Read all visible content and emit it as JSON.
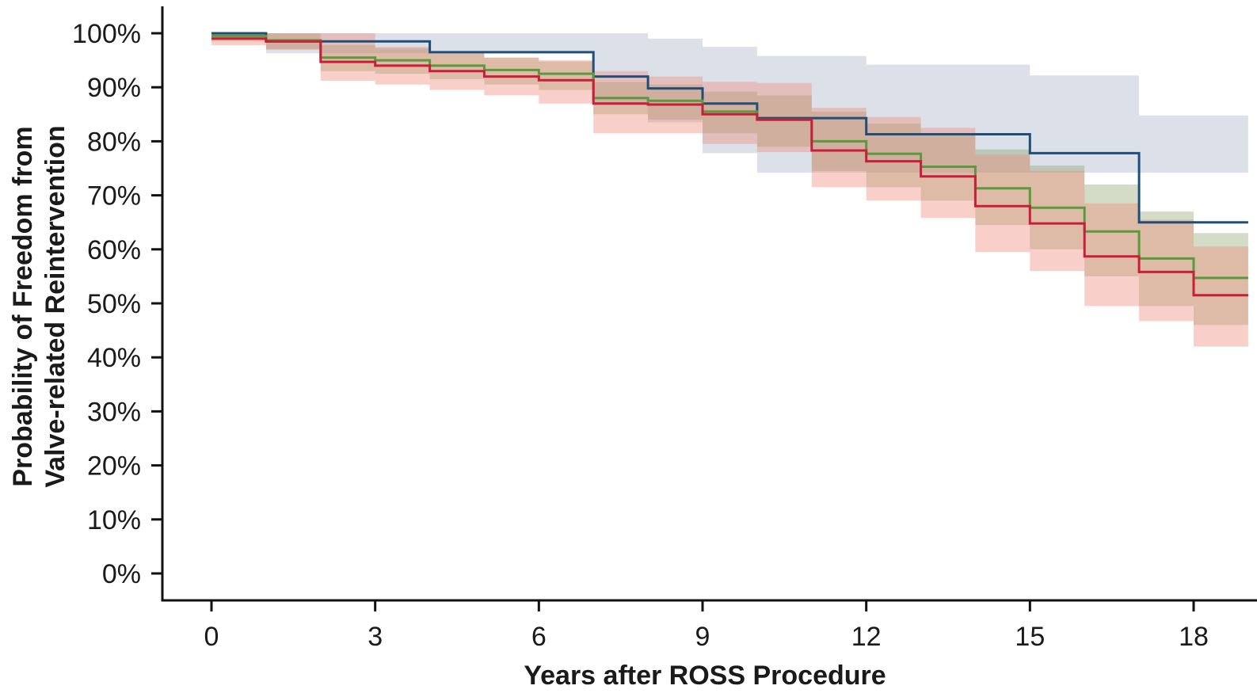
{
  "chart_data": {
    "type": "line",
    "step": true,
    "title": "",
    "xlabel": "Years after ROSS Procedure",
    "ylabel": [
      "Probability of Freedom from",
      "Valve-related Reintervention"
    ],
    "xlim": [
      -0.9,
      19
    ],
    "ylim": [
      -0.05,
      1.05
    ],
    "xticks": [
      0,
      3,
      6,
      9,
      12,
      15,
      18
    ],
    "xtick_labels": [
      "0",
      "3",
      "6",
      "9",
      "12",
      "15",
      "18"
    ],
    "yticks": [
      0,
      0.1,
      0.2,
      0.3,
      0.4,
      0.5,
      0.6,
      0.7,
      0.8,
      0.9,
      1.0
    ],
    "ytick_labels": [
      "0%",
      "10%",
      "20%",
      "30%",
      "40%",
      "50%",
      "60%",
      "70%",
      "80%",
      "90%",
      "100%"
    ],
    "grid": false,
    "legend": "none",
    "series": [
      {
        "color": "#1f4e79",
        "band_color": "#9aa8bf",
        "band_opacity": 0.35,
        "x": [
          0,
          1,
          4,
          7,
          8,
          9,
          10,
          12,
          15,
          17,
          18,
          19
        ],
        "y": [
          1.0,
          0.985,
          0.965,
          0.92,
          0.898,
          0.87,
          0.843,
          0.813,
          0.778,
          0.65,
          0.65,
          0.65
        ],
        "lower": [
          0.99,
          0.963,
          0.963,
          0.868,
          0.835,
          0.778,
          0.742,
          0.742,
          0.742,
          0.742,
          0.742,
          0.742
        ],
        "upper": [
          1.0,
          1.0,
          1.0,
          1.0,
          0.99,
          0.975,
          0.958,
          0.942,
          0.922,
          0.848,
          0.848,
          0.848
        ]
      },
      {
        "color": "#5a9a3c",
        "band_color": "#7e9c5e",
        "band_opacity": 0.35,
        "x": [
          0,
          1,
          2,
          3,
          4,
          5,
          6,
          7,
          8,
          9,
          10,
          11,
          12,
          13,
          14,
          15,
          16,
          17,
          18,
          19
        ],
        "y": [
          0.995,
          0.987,
          0.955,
          0.95,
          0.94,
          0.932,
          0.925,
          0.88,
          0.875,
          0.855,
          0.84,
          0.8,
          0.777,
          0.753,
          0.713,
          0.677,
          0.633,
          0.583,
          0.547,
          0.547
        ],
        "lower": [
          0.985,
          0.97,
          0.93,
          0.925,
          0.915,
          0.905,
          0.895,
          0.85,
          0.84,
          0.815,
          0.79,
          0.745,
          0.715,
          0.69,
          0.645,
          0.6,
          0.55,
          0.495,
          0.46,
          0.46
        ],
        "upper": [
          1.0,
          1.0,
          0.978,
          0.972,
          0.965,
          0.955,
          0.948,
          0.91,
          0.905,
          0.892,
          0.885,
          0.855,
          0.833,
          0.815,
          0.785,
          0.755,
          0.72,
          0.67,
          0.63,
          0.63
        ]
      },
      {
        "color": "#c81e3a",
        "band_color": "#f08a78",
        "band_opacity": 0.4,
        "x": [
          0,
          1,
          2,
          3,
          4,
          5,
          6,
          7,
          8,
          9,
          10,
          11,
          12,
          13,
          14,
          15,
          16,
          17,
          18,
          19
        ],
        "y": [
          0.99,
          0.985,
          0.947,
          0.94,
          0.93,
          0.92,
          0.913,
          0.87,
          0.868,
          0.85,
          0.84,
          0.783,
          0.763,
          0.735,
          0.68,
          0.648,
          0.587,
          0.558,
          0.515,
          0.515
        ],
        "lower": [
          0.978,
          0.97,
          0.912,
          0.905,
          0.895,
          0.885,
          0.87,
          0.815,
          0.815,
          0.795,
          0.78,
          0.715,
          0.69,
          0.658,
          0.595,
          0.56,
          0.495,
          0.467,
          0.42,
          0.42
        ],
        "upper": [
          1.0,
          1.0,
          1.0,
          0.975,
          0.965,
          0.955,
          0.95,
          0.93,
          0.92,
          0.91,
          0.908,
          0.862,
          0.845,
          0.825,
          0.775,
          0.745,
          0.685,
          0.655,
          0.605,
          0.605
        ]
      }
    ]
  }
}
